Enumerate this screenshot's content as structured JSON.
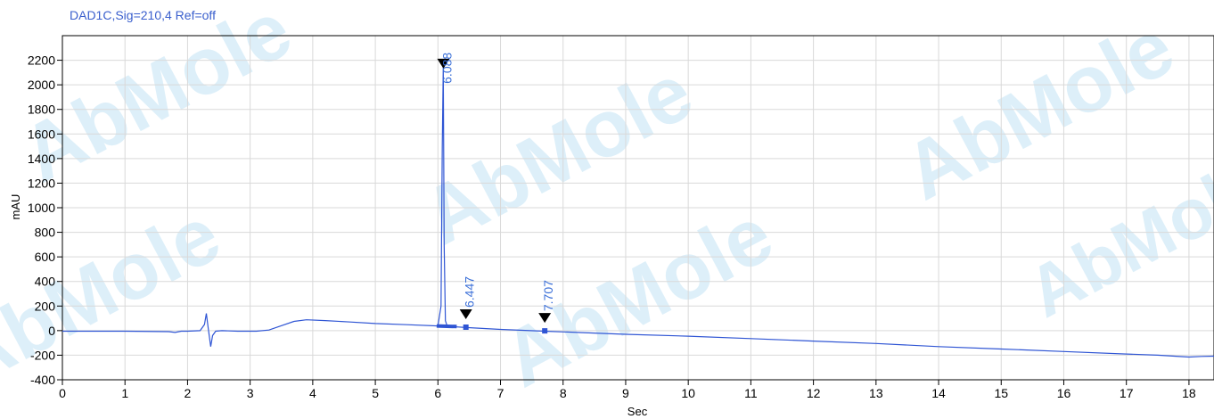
{
  "watermark": "AbMole",
  "colors": {
    "trace": "#2f55d4",
    "label": "#3a6fd8",
    "grid": "#d9d9d9",
    "title": "#3a5fcd"
  },
  "chart_data": {
    "type": "line",
    "title": "DAD1C,Sig=210,4  Ref=off",
    "xlabel": "Sec",
    "ylabel": "mAU",
    "xlim": [
      0,
      18.4
    ],
    "ylim": [
      -400,
      2400
    ],
    "x_ticks": [
      0,
      1,
      2,
      3,
      4,
      5,
      6,
      7,
      8,
      9,
      10,
      11,
      12,
      13,
      14,
      15,
      16,
      17,
      18
    ],
    "y_ticks": [
      -400,
      -200,
      0,
      200,
      400,
      600,
      800,
      1000,
      1200,
      1400,
      1600,
      1800,
      2000,
      2200
    ],
    "grid": true,
    "series": [
      {
        "x": [
          0,
          1.0,
          1.7,
          1.8,
          1.9,
          2.0,
          2.2,
          2.27,
          2.3,
          2.33,
          2.37,
          2.4,
          2.45,
          2.55,
          2.8,
          3.1,
          3.3,
          3.5,
          3.7,
          3.9,
          4.2,
          4.6,
          5.0,
          5.5,
          6.0,
          6.05,
          6.07,
          6.085,
          6.1,
          6.12,
          6.15,
          6.3,
          6.45,
          7.0,
          7.7,
          8.5,
          9.0,
          10.0,
          11.0,
          12.0,
          13.0,
          14.0,
          15.0,
          16.0,
          17.0,
          17.5,
          18.0,
          18.2,
          18.4
        ],
        "y": [
          -5,
          -5,
          -8,
          -15,
          -5,
          -5,
          0,
          50,
          140,
          20,
          -130,
          -40,
          -5,
          0,
          -5,
          -5,
          5,
          40,
          75,
          88,
          82,
          70,
          58,
          48,
          38,
          200,
          1500,
          2150,
          700,
          80,
          35,
          30,
          25,
          10,
          -5,
          -20,
          -30,
          -45,
          -65,
          -85,
          -105,
          -130,
          -150,
          -170,
          -190,
          -200,
          -215,
          -210,
          -208
        ]
      }
    ],
    "peaks": [
      {
        "time": "6.088",
        "x": 6.088,
        "y": 2140
      },
      {
        "time": "6.447",
        "x": 6.447,
        "y": 28
      },
      {
        "time": "7.707",
        "x": 7.707,
        "y": -2
      }
    ]
  }
}
